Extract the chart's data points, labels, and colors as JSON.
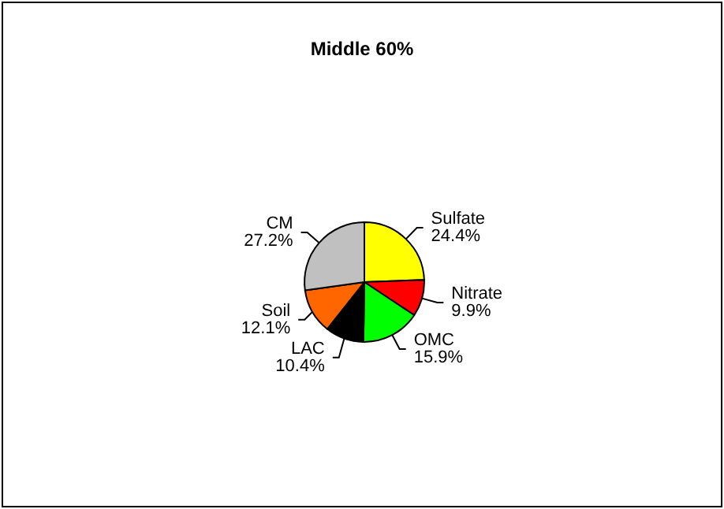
{
  "chart_data": {
    "type": "pie",
    "title": "Middle 60%",
    "categories": [
      "Sulfate",
      "Nitrate",
      "OMC",
      "LAC",
      "Soil",
      "CM"
    ],
    "values": [
      24.4,
      9.9,
      15.9,
      10.4,
      12.1,
      27.2
    ],
    "colors": [
      "#ffff00",
      "#ff0000",
      "#00ff00",
      "#000000",
      "#ff6600",
      "#c0c0c0"
    ],
    "value_labels": [
      "24.4%",
      "9.9%",
      "15.9%",
      "10.4%",
      "12.1%",
      "27.2%"
    ],
    "legend": false
  }
}
